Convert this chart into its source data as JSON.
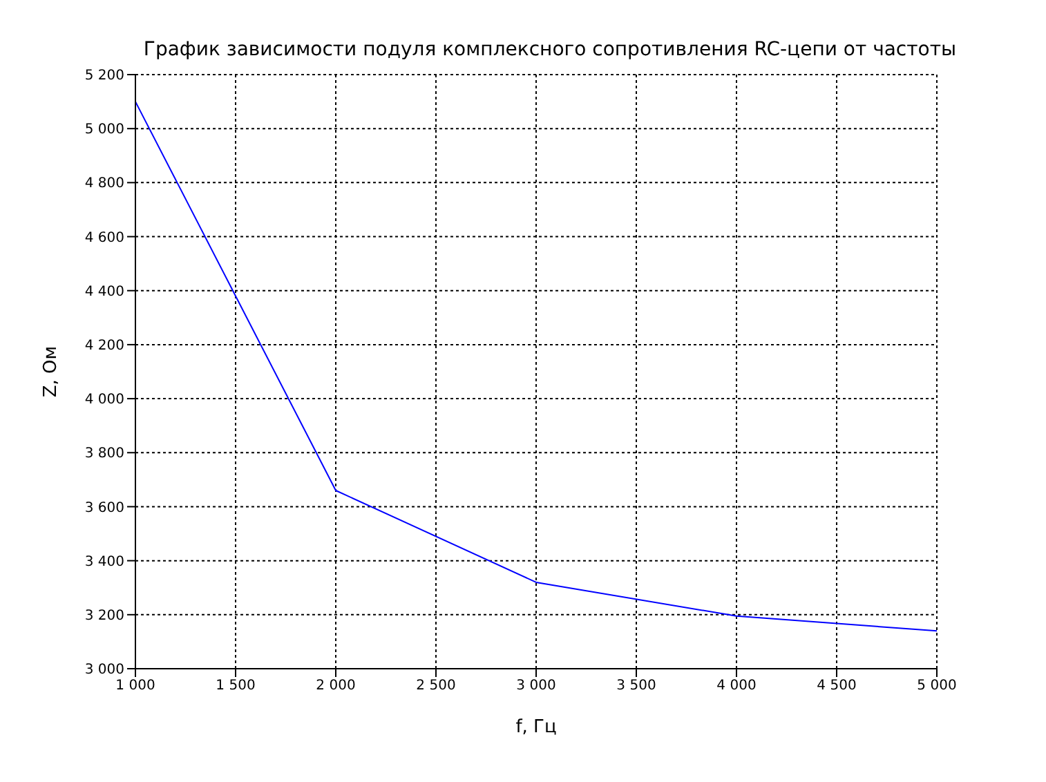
{
  "chart_data": {
    "type": "line",
    "title": "График зависимости подуля комплексного сопротивления RC-цепи от частоты",
    "xlabel": "f, Гц",
    "ylabel": "Z, Ом",
    "x": [
      1000,
      1500,
      2000,
      3000,
      4000,
      5000
    ],
    "series": [
      {
        "color": "#0000ff",
        "values": [
          5100,
          4380,
          3660,
          3320,
          3195,
          3140
        ]
      }
    ],
    "xlim": [
      1000,
      5000
    ],
    "xticks": [
      {
        "value": 1000,
        "label": "1 000"
      },
      {
        "value": 1500,
        "label": "1 500"
      },
      {
        "value": 2000,
        "label": "2 000"
      },
      {
        "value": 2500,
        "label": "2 500"
      },
      {
        "value": 3000,
        "label": "3 000"
      },
      {
        "value": 3500,
        "label": "3 500"
      },
      {
        "value": 4000,
        "label": "4 000"
      },
      {
        "value": 4500,
        "label": "4 500"
      },
      {
        "value": 5000,
        "label": "5 000"
      }
    ],
    "ylim": [
      3000,
      5200
    ],
    "yticks": [
      {
        "value": 3000,
        "label": "3 000"
      },
      {
        "value": 3200,
        "label": "3 200"
      },
      {
        "value": 3400,
        "label": "3 400"
      },
      {
        "value": 3600,
        "label": "3 600"
      },
      {
        "value": 3800,
        "label": "3 800"
      },
      {
        "value": 4000,
        "label": "4 000"
      },
      {
        "value": 4200,
        "label": "4 200"
      },
      {
        "value": 4400,
        "label": "4 400"
      },
      {
        "value": 4600,
        "label": "4 600"
      },
      {
        "value": 4800,
        "label": "4 800"
      },
      {
        "value": 5000,
        "label": "5 000"
      },
      {
        "value": 5200,
        "label": "5 200"
      }
    ],
    "grid": true,
    "marker": "none",
    "line_style": "solid",
    "legend": false
  }
}
